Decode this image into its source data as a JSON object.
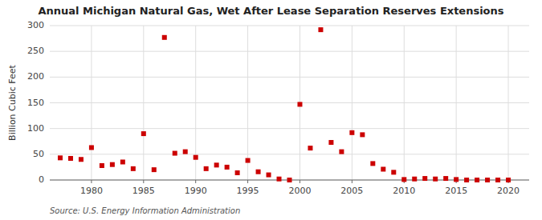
{
  "chart_data": {
    "type": "scatter",
    "title": "Annual Michigan Natural Gas, Wet After Lease Separation Reserves Extensions",
    "ylabel": "Billion Cubic Feet",
    "annotations": [
      "Source: U.S. Energy Information Administration"
    ],
    "x": [
      1977,
      1978,
      1979,
      1980,
      1981,
      1982,
      1983,
      1984,
      1985,
      1986,
      1987,
      1988,
      1989,
      1990,
      1991,
      1992,
      1993,
      1994,
      1995,
      1996,
      1997,
      1998,
      1999,
      2000,
      2001,
      2002,
      2003,
      2004,
      2005,
      2006,
      2007,
      2008,
      2009,
      2010,
      2011,
      2012,
      2013,
      2014,
      2015,
      2016,
      2017,
      2018,
      2019,
      2020
    ],
    "values": [
      43,
      42,
      40,
      63,
      28,
      30,
      35,
      22,
      90,
      20,
      277,
      52,
      55,
      44,
      22,
      29,
      25,
      14,
      38,
      16,
      10,
      2,
      0,
      147,
      62,
      292,
      73,
      55,
      92,
      88,
      32,
      21,
      15,
      1,
      2,
      3,
      2,
      3,
      1,
      0,
      0,
      0,
      0,
      0
    ],
    "color": "#cc0000",
    "marker": "square",
    "xlim": [
      1976,
      2022
    ],
    "ylim": [
      0,
      300
    ],
    "xticks": [
      1980,
      1985,
      1990,
      1995,
      2000,
      2005,
      2010,
      2015,
      2020
    ],
    "yticks": [
      0,
      50,
      100,
      150,
      200,
      250,
      300
    ],
    "grid": true
  }
}
